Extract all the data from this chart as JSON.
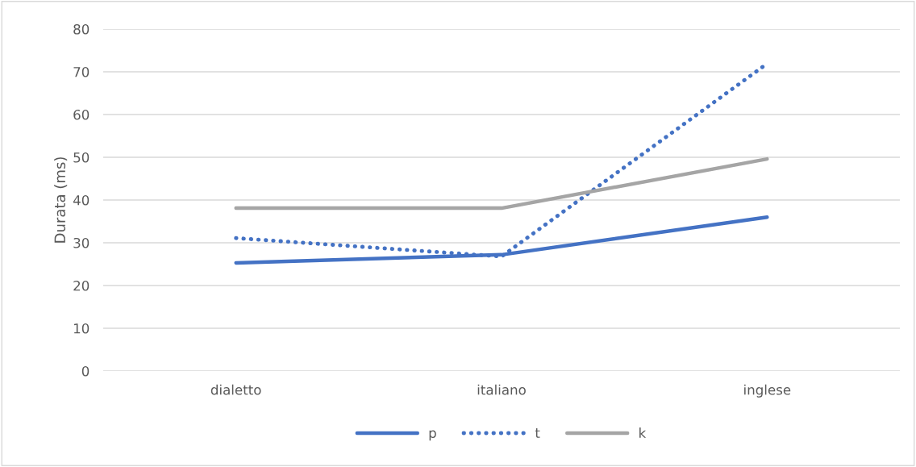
{
  "chart_data": {
    "type": "line",
    "ylabel": "Durata (ms)",
    "categories": [
      "dialetto",
      "italiano",
      "inglese"
    ],
    "series": [
      {
        "name": "p",
        "color": "#4472c4",
        "values": [
          25.3,
          27.2,
          36.0
        ],
        "line_style": "solid"
      },
      {
        "name": "t",
        "color": "#4472c4",
        "values": [
          31.1,
          26.8,
          71.9
        ],
        "line_style": "dotted"
      },
      {
        "name": "k",
        "color": "#a5a5a5",
        "values": [
          38.1,
          38.1,
          49.6
        ],
        "line_style": "solid"
      }
    ],
    "ylim": [
      0,
      80
    ],
    "yticks": [
      0,
      10,
      20,
      30,
      40,
      50,
      60,
      70,
      80
    ],
    "grid": "y",
    "legend": "bottom",
    "marker": "none"
  }
}
